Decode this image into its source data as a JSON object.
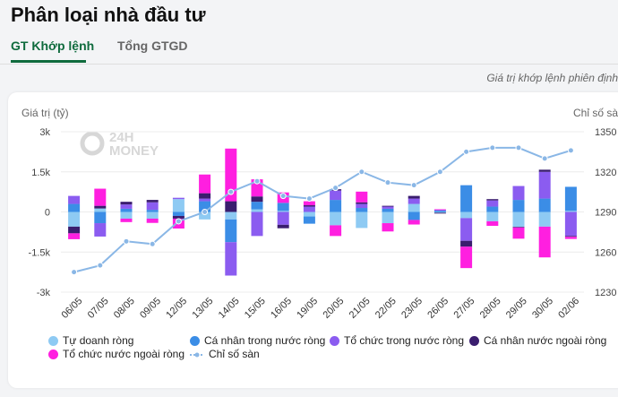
{
  "page": {
    "title": "Phân loại nhà đầu tư",
    "tabs": [
      {
        "label": "GT Khớp lệnh",
        "active": true
      },
      {
        "label": "Tổng GTGD",
        "active": false
      }
    ],
    "subtitle": "Giá trị khớp lệnh phiên định"
  },
  "colors": {
    "tu_doanh": "#8ecaf3",
    "ca_nhan_trong_nuoc": "#3b8de6",
    "to_chuc_trong_nuoc": "#8b5cf0",
    "ca_nhan_nuoc_ngoai": "#3a1d6e",
    "to_chuc_nuoc_ngoai": "#ff1fe0",
    "index_line": "#8ab7e6",
    "tab_active": "#0f6b3d"
  },
  "watermark": {
    "line1": "24H",
    "line2": "MONEY"
  },
  "chart_data": {
    "type": "bar",
    "stacked": true,
    "ylabel": "Giá trị (tỷ)",
    "y2label": "Chỉ số sàn",
    "ylim": [
      -3000,
      3000
    ],
    "yticks": [
      3000,
      1500,
      0,
      -1500,
      -3000
    ],
    "ytick_labels": [
      "3k",
      "1.5k",
      "0",
      "-1.5k",
      "-3k"
    ],
    "y2lim": [
      1230,
      1350
    ],
    "y2ticks": [
      1350,
      1320,
      1290,
      1260,
      1230
    ],
    "categories": [
      "06/05",
      "07/05",
      "08/05",
      "09/05",
      "12/05",
      "13/05",
      "14/05",
      "15/05",
      "16/05",
      "19/05",
      "20/05",
      "21/05",
      "22/05",
      "23/05",
      "26/05",
      "27/05",
      "28/05",
      "29/05",
      "30/05",
      "02/06"
    ],
    "series": [
      {
        "name": "Tự doanh ròng",
        "color_key": "tu_doanh",
        "values": [
          -550,
          130,
          -250,
          -250,
          480,
          -280,
          -280,
          100,
          40,
          -170,
          -500,
          -600,
          -420,
          300,
          -30,
          -230,
          -350,
          -560,
          -550,
          40
        ]
      },
      {
        "name": "Cá nhân trong nước ròng",
        "color_key": "ca_nhan_trong_nuoc",
        "values": [
          300,
          -420,
          120,
          80,
          -150,
          400,
          -850,
          280,
          300,
          -270,
          450,
          150,
          120,
          -300,
          50,
          1000,
          200,
          450,
          500,
          900
        ]
      },
      {
        "name": "Tổ chức trong nước ròng",
        "color_key": "to_chuc_trong_nuoc",
        "values": [
          300,
          -500,
          160,
          280,
          50,
          100,
          -1250,
          -900,
          -480,
          200,
          350,
          150,
          80,
          200,
          30,
          -850,
          230,
          520,
          1000,
          -900
        ]
      },
      {
        "name": "Cá nhân nước ngoài ròng",
        "color_key": "ca_nhan_nuoc_ngoai",
        "values": [
          -250,
          100,
          100,
          90,
          -100,
          200,
          400,
          200,
          -130,
          50,
          50,
          60,
          30,
          100,
          -30,
          -220,
          50,
          -20,
          80,
          -30
        ]
      },
      {
        "name": "Tổ chức nước ngoài ròng",
        "color_key": "to_chuc_nuoc_ngoai",
        "values": [
          -220,
          640,
          -130,
          -160,
          -370,
          700,
          1970,
          640,
          390,
          150,
          -400,
          400,
          -310,
          -170,
          20,
          -800,
          -170,
          -420,
          -1150,
          -80
        ]
      }
    ],
    "line": {
      "name": "Chỉ số sàn",
      "color_key": "index_line",
      "values": [
        1245,
        1250,
        1268,
        1266,
        1283,
        1290,
        1305,
        1313,
        1302,
        1300,
        1308,
        1320,
        1312,
        1310,
        1320,
        1335,
        1338,
        1338,
        1330,
        1336
      ]
    },
    "legend_position": "bottom",
    "grid": true
  }
}
